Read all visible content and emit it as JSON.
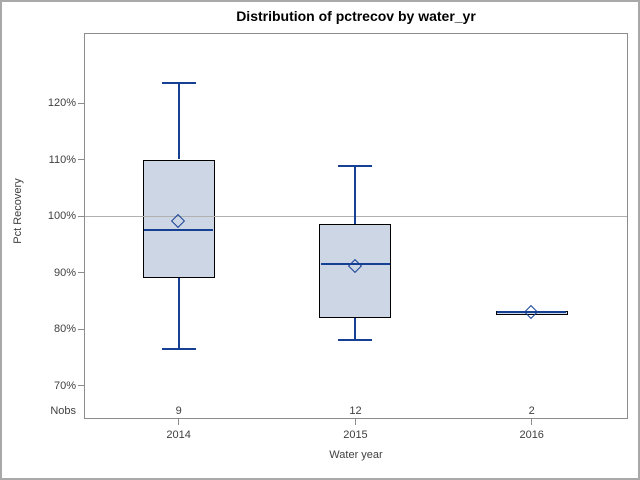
{
  "title": "Distribution of pctrecov by water_yr",
  "y_axis": {
    "label": "Pct Recovery",
    "tick_labels": [
      "120%",
      "110%",
      "100%",
      "90%",
      "80%",
      "70%"
    ]
  },
  "x_axis": {
    "label": "Water year",
    "categories": [
      "2014",
      "2015",
      "2016"
    ]
  },
  "nobs": {
    "label": "Nobs",
    "values": [
      "9",
      "12",
      "2"
    ]
  },
  "colors": {
    "box_fill": "#cdd6e4",
    "line_blue": "#164094",
    "box_border": "#000000",
    "reference_line": "#b0b0b0",
    "axis_gray": "#8c8c8c",
    "frame_gray": "#a9a9a9",
    "text": "#3f3f3f"
  },
  "chart_data": {
    "type": "boxplot",
    "title": "Distribution of pctrecov by water_yr",
    "xlabel": "Water year",
    "ylabel": "Pct Recovery",
    "ylim": [
      64,
      128
    ],
    "yticks": [
      120,
      110,
      100,
      90,
      80,
      70
    ],
    "ytick_labels": [
      "120%",
      "110%",
      "100%",
      "90%",
      "80%",
      "70%"
    ],
    "reference_line_y": 100,
    "grid": false,
    "legend": null,
    "categories": [
      "2014",
      "2015",
      "2016"
    ],
    "series": [
      {
        "category": "2014",
        "nobs": 9,
        "whisker_low": 76.5,
        "q1": 89,
        "median": 97.5,
        "q3": 110,
        "whisker_high": 123.5,
        "mean": 99
      },
      {
        "category": "2015",
        "nobs": 12,
        "whisker_low": 78,
        "q1": 82,
        "median": 91.5,
        "q3": 98.5,
        "whisker_high": 108.8,
        "mean": 91
      },
      {
        "category": "2016",
        "nobs": 2,
        "whisker_low": 82.7,
        "q1": 82.8,
        "median": 83,
        "q3": 83.2,
        "whisker_high": 83.3,
        "mean": 83
      }
    ]
  }
}
